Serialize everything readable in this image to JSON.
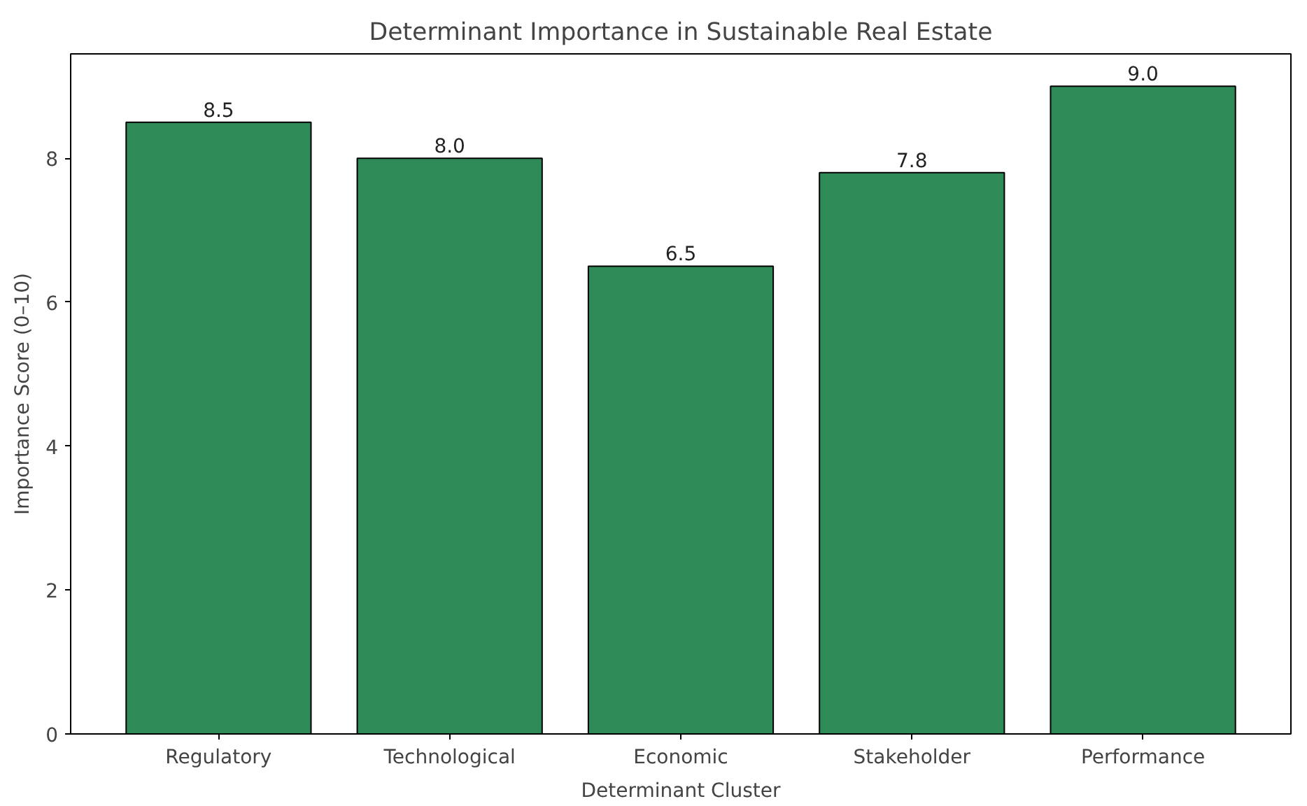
{
  "chart_data": {
    "type": "bar",
    "title": "Determinant Importance in Sustainable Real Estate",
    "xlabel": "Determinant Cluster",
    "ylabel": "Importance Score (0–10)",
    "categories": [
      "Regulatory",
      "Technological",
      "Economic",
      "Stakeholder",
      "Performance"
    ],
    "values": [
      8.5,
      8.0,
      6.5,
      7.8,
      9.0
    ],
    "value_labels": [
      "8.5",
      "8.0",
      "6.5",
      "7.8",
      "9.0"
    ],
    "color": "#2e8b57",
    "ylim": [
      0,
      9.45
    ],
    "yticks": [
      0,
      2,
      4,
      6,
      8
    ],
    "grid": false
  }
}
